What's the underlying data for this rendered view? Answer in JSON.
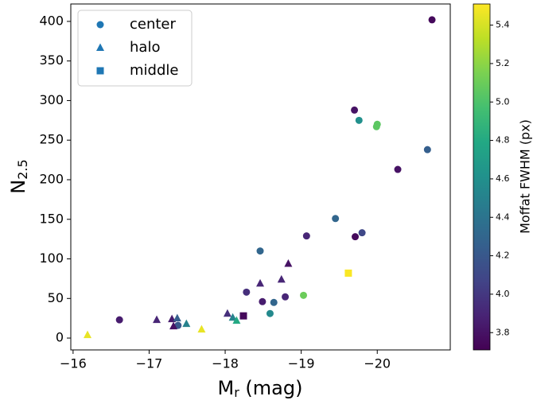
{
  "chart_data": {
    "type": "scatter",
    "xlabel": {
      "main": "M",
      "sub": "r",
      "rest": " (mag)"
    },
    "ylabel": {
      "main": "N",
      "sub": "2.5"
    },
    "xlim": [
      -15.97,
      -20.96
    ],
    "ylim": [
      -15,
      422
    ],
    "xticks": [
      {
        "value": -16,
        "label": "−16"
      },
      {
        "value": -17,
        "label": "−17"
      },
      {
        "value": -18,
        "label": "−18"
      },
      {
        "value": -19,
        "label": "−19"
      },
      {
        "value": -20,
        "label": "−20"
      }
    ],
    "yticks": [
      0,
      50,
      100,
      150,
      200,
      250,
      300,
      350,
      400
    ],
    "legend": "upper left",
    "colormap": "viridis",
    "colorbar_label": "Moffat FWHM (px)",
    "clim": [
      3.71,
      5.51
    ],
    "cticks": [
      3.8,
      {
        "value": 4.0,
        "label": "4.0"
      },
      4.2,
      4.4,
      4.6,
      4.8,
      {
        "value": 5.0,
        "label": "5.0"
      },
      5.2,
      5.4
    ],
    "series": [
      {
        "name": "center",
        "marker": "circle",
        "color": "#1f77b4",
        "x": [
          -20.72,
          -19.7,
          -19.76,
          -20.0,
          -19.99,
          -20.66,
          -20.27,
          -19.45,
          -19.8,
          -19.07,
          -19.71,
          -18.46,
          -18.28,
          -18.79,
          -19.03,
          -18.64,
          -18.49,
          -18.59,
          -16.61,
          -17.38
        ],
        "values": [
          402,
          288,
          275,
          270,
          267,
          238,
          213,
          151,
          133,
          129,
          128,
          110,
          58,
          52,
          54,
          45,
          46,
          31,
          23,
          16
        ],
        "c": [
          3.75,
          3.8,
          4.6,
          5.05,
          5.05,
          4.25,
          3.8,
          4.3,
          4.1,
          3.9,
          3.75,
          4.3,
          3.95,
          3.9,
          5.1,
          4.3,
          3.85,
          4.55,
          3.85,
          4.2
        ]
      },
      {
        "name": "halo",
        "marker": "triangle",
        "color": "#1f77b4",
        "x": [
          -16.19,
          -17.1,
          -17.3,
          -17.37,
          -17.49,
          -17.32,
          -17.69,
          -18.03,
          -18.1,
          -18.15,
          -18.46,
          -18.74,
          -18.83
        ],
        "values": [
          4,
          23,
          24,
          25,
          18,
          15,
          11,
          31,
          26,
          22,
          69,
          74,
          94
        ],
        "c": [
          5.45,
          3.9,
          3.85,
          4.25,
          4.5,
          3.8,
          5.45,
          3.95,
          4.5,
          4.8,
          3.9,
          3.9,
          3.8
        ]
      },
      {
        "name": "middle",
        "marker": "square",
        "color": "#1f77b4",
        "x": [
          -19.62,
          -18.24
        ],
        "values": [
          82,
          28
        ],
        "c": [
          5.5,
          3.75
        ]
      }
    ]
  }
}
